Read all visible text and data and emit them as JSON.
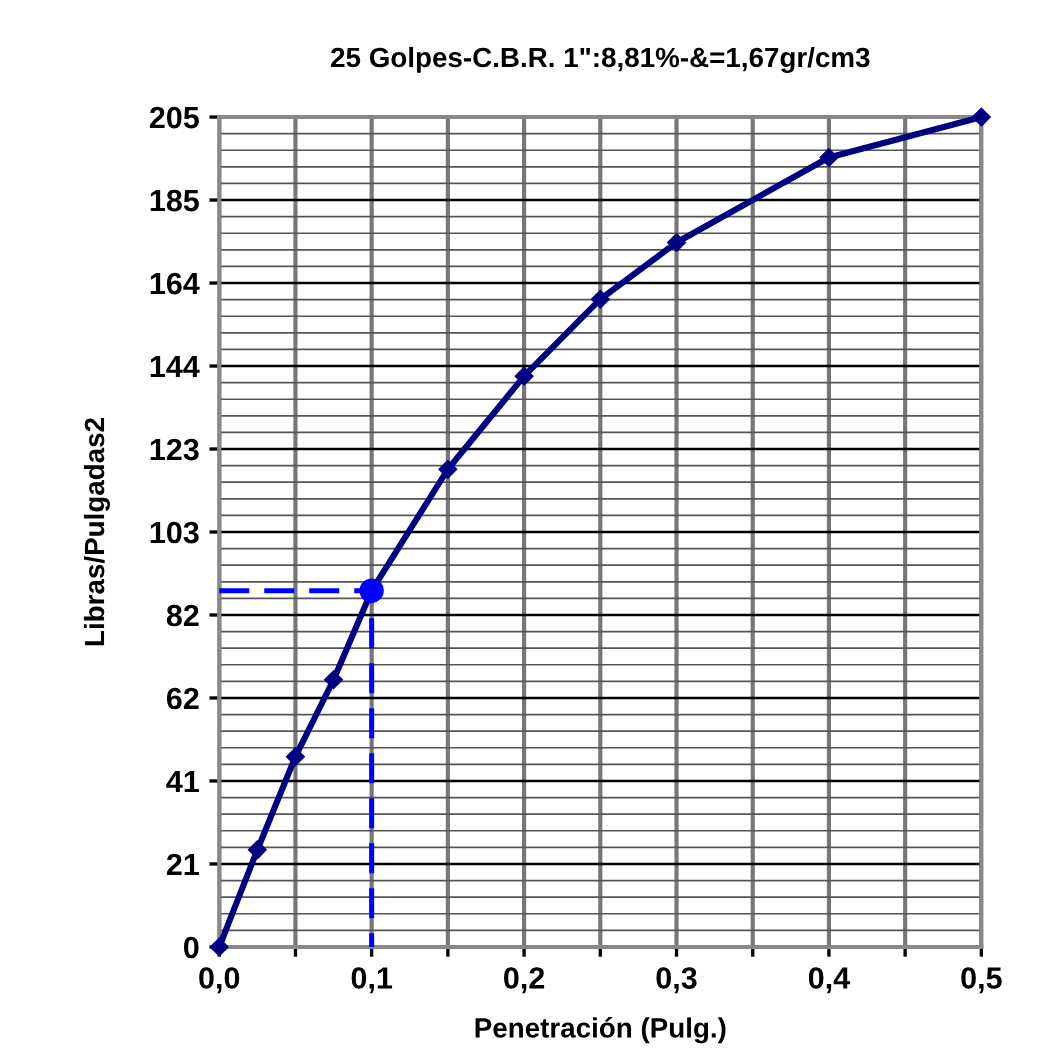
{
  "chart_data": {
    "type": "line",
    "title": "25 Golpes-C.B.R. 1\":8,81%-&=1,67gr/cm3",
    "xlabel": "Penetración (Pulg.)",
    "ylabel": "Libras/Pulgadas2",
    "xlim": [
      0,
      0.5
    ],
    "ylim": [
      0,
      205
    ],
    "xticks": [
      {
        "value": 0,
        "label": "0,0"
      },
      {
        "value": 0.05,
        "label": null
      },
      {
        "value": 0.1,
        "label": "0,1"
      },
      {
        "value": 0.15,
        "label": null
      },
      {
        "value": 0.2,
        "label": "0,2"
      },
      {
        "value": 0.25,
        "label": null
      },
      {
        "value": 0.3,
        "label": "0,3"
      },
      {
        "value": 0.35,
        "label": null
      },
      {
        "value": 0.4,
        "label": "0,4"
      },
      {
        "value": 0.45,
        "label": null
      },
      {
        "value": 0.5,
        "label": "0,5"
      }
    ],
    "yticks": [
      0,
      {
        "value": 20.5,
        "label": "21"
      },
      {
        "value": 41,
        "label": "41"
      },
      {
        "value": 61.5,
        "label": "62"
      },
      {
        "value": 82,
        "label": "82"
      },
      {
        "value": 102.5,
        "label": "103"
      },
      {
        "value": 123,
        "label": "123"
      },
      {
        "value": 143.5,
        "label": "144"
      },
      {
        "value": 164,
        "label": "164"
      },
      {
        "value": 184.5,
        "label": "185"
      },
      {
        "value": 205,
        "label": "205"
      }
    ],
    "grid": true,
    "series": [
      {
        "color": "#000080",
        "marker": "diamond",
        "line_style": "solid",
        "x": [
          0,
          0.025,
          0.05,
          0.075,
          0.1,
          0.15,
          0.2,
          0.25,
          0.3,
          0.4,
          0.5
        ],
        "values": [
          0,
          24,
          47,
          66,
          88,
          118,
          141,
          160,
          174,
          195,
          205
        ]
      },
      {
        "color": "#0000ff",
        "marker": "none",
        "line_style": "dashed",
        "x": [
          0,
          0.1,
          0.1
        ],
        "values": [
          88,
          88,
          0
        ]
      },
      {
        "type": "scatter",
        "color": "#0000ff",
        "marker": "circle",
        "x": [
          0.1
        ],
        "values": [
          88
        ]
      }
    ]
  }
}
